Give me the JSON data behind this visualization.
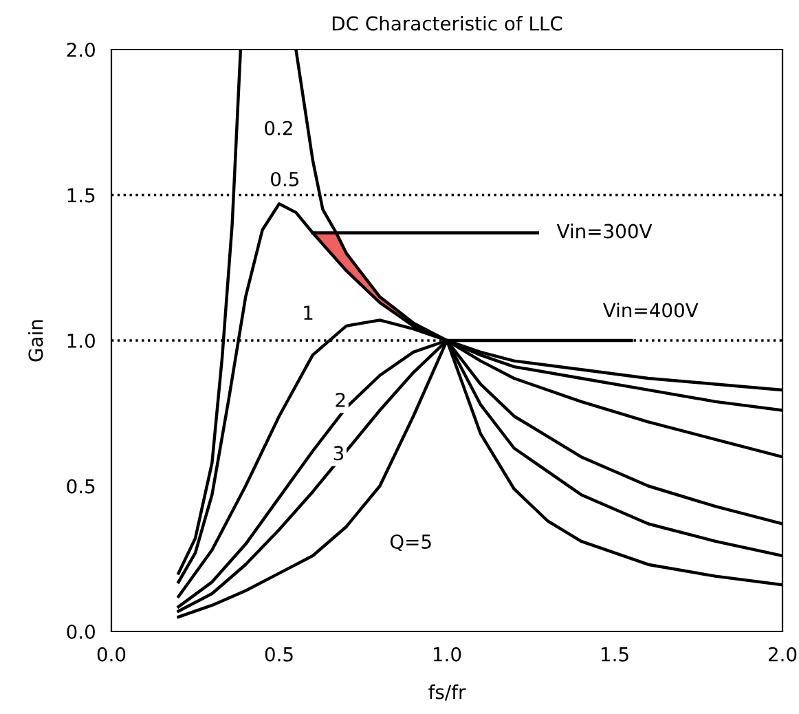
{
  "chart_data": {
    "type": "line",
    "title": "DC Characteristic of LLC",
    "xlabel": "fs/fr",
    "ylabel": "Gain",
    "xlim": [
      0,
      2
    ],
    "ylim": [
      0,
      2
    ],
    "xticks": [
      {
        "value": 0,
        "label": "0.0"
      },
      {
        "value": 0.5,
        "label": "0.5"
      },
      {
        "value": 1,
        "label": "1.0"
      },
      {
        "value": 1.5,
        "label": "1.5"
      },
      {
        "value": 2,
        "label": "2.0"
      }
    ],
    "yticks": [
      {
        "value": 0,
        "label": "0.0"
      },
      {
        "value": 0.5,
        "label": "0.5"
      },
      {
        "value": 1,
        "label": "1.0"
      },
      {
        "value": 1.5,
        "label": "1.5"
      },
      {
        "value": 2,
        "label": "2.0"
      }
    ],
    "grid": false,
    "legend": false,
    "line_style": "solid",
    "marker": "none",
    "series": [
      {
        "name": "0.2",
        "color": "#000000",
        "x": [
          0.2,
          0.25,
          0.3,
          0.33,
          0.36,
          0.385,
          0.45,
          0.55,
          0.6,
          0.63,
          0.67,
          0.7,
          0.8,
          0.9,
          1.0,
          1.1,
          1.2,
          1.4,
          1.6,
          1.8,
          2.0
        ],
        "values": [
          0.2,
          0.32,
          0.58,
          0.94,
          1.4,
          2.0,
          null,
          2.0,
          1.62,
          1.45,
          1.37,
          1.3,
          1.15,
          1.06,
          1.0,
          0.96,
          0.93,
          0.9,
          0.87,
          0.85,
          0.83
        ],
        "upper": [
          null,
          null,
          null,
          null,
          null,
          null,
          null,
          null,
          1.37,
          1.37,
          1.37,
          1.3,
          1.15,
          1.06,
          1.0,
          null,
          null,
          null,
          null,
          null,
          null
        ],
        "lower": [
          null,
          null,
          null,
          null,
          null,
          null,
          null,
          null,
          1.37,
          1.33,
          1.29,
          1.24,
          1.13,
          1.05,
          1.0,
          null,
          null,
          null,
          null,
          null,
          null
        ]
      },
      {
        "name": "0.5",
        "color": "#000000",
        "x": [
          0.2,
          0.25,
          0.3,
          0.35,
          0.4,
          0.45,
          0.5,
          0.55,
          0.6,
          0.7,
          0.8,
          0.9,
          1.0,
          1.1,
          1.2,
          1.4,
          1.6,
          1.8,
          2.0
        ],
        "values": [
          0.17,
          0.27,
          0.47,
          0.8,
          1.15,
          1.38,
          1.47,
          1.44,
          1.37,
          1.24,
          1.13,
          1.05,
          1.0,
          0.95,
          0.91,
          0.87,
          0.83,
          0.79,
          0.76
        ]
      },
      {
        "name": "1",
        "color": "#000000",
        "x": [
          0.2,
          0.3,
          0.4,
          0.5,
          0.6,
          0.7,
          0.8,
          0.9,
          1.0,
          1.1,
          1.2,
          1.4,
          1.6,
          1.8,
          2.0
        ],
        "values": [
          0.12,
          0.28,
          0.5,
          0.74,
          0.95,
          1.05,
          1.07,
          1.04,
          1.0,
          0.93,
          0.87,
          0.79,
          0.72,
          0.66,
          0.6
        ]
      },
      {
        "name": "2",
        "color": "#000000",
        "x": [
          0.2,
          0.3,
          0.4,
          0.5,
          0.6,
          0.7,
          0.8,
          0.9,
          1.0,
          1.1,
          1.2,
          1.4,
          1.6,
          1.8,
          2.0
        ],
        "values": [
          0.085,
          0.17,
          0.3,
          0.46,
          0.62,
          0.77,
          0.88,
          0.96,
          1.0,
          0.85,
          0.74,
          0.6,
          0.5,
          0.43,
          0.37
        ]
      },
      {
        "name": "3",
        "color": "#000000",
        "x": [
          0.2,
          0.3,
          0.4,
          0.5,
          0.6,
          0.7,
          0.8,
          0.9,
          1.0,
          1.1,
          1.2,
          1.4,
          1.6,
          1.8,
          2.0
        ],
        "values": [
          0.07,
          0.13,
          0.23,
          0.35,
          0.48,
          0.62,
          0.76,
          0.89,
          1.0,
          0.78,
          0.63,
          0.47,
          0.37,
          0.31,
          0.26
        ]
      },
      {
        "name": "Q=5",
        "color": "#000000",
        "x": [
          0.2,
          0.3,
          0.4,
          0.5,
          0.6,
          0.7,
          0.8,
          0.9,
          1.0,
          1.1,
          1.2,
          1.3,
          1.4,
          1.6,
          1.8,
          2.0
        ],
        "values": [
          0.05,
          0.09,
          0.14,
          0.2,
          0.26,
          0.36,
          0.5,
          0.74,
          1.0,
          0.68,
          0.49,
          0.38,
          0.31,
          0.23,
          0.19,
          0.16
        ]
      },
      {
        "name": "Vin=300V",
        "color": "#000000",
        "x": [
          0.6,
          1.27
        ],
        "values": [
          1.37,
          1.37
        ]
      },
      {
        "name": "Vin=400V",
        "color": "#000000",
        "x": [
          1.0,
          1.55
        ],
        "values": [
          1.0,
          1.0
        ]
      }
    ],
    "ref_lines": [
      {
        "axis": "y",
        "value": 1.5,
        "label": null,
        "line_style": "dotted",
        "color": "#000000"
      },
      {
        "axis": "y",
        "value": 1.0,
        "label": null,
        "line_style": "dotted",
        "color": "#000000"
      }
    ]
  }
}
